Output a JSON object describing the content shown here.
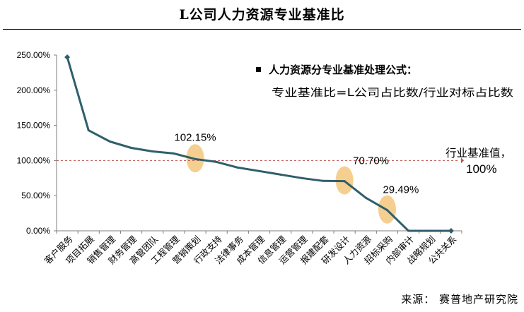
{
  "title": "L公司人力资源专业基准比",
  "source": "来源：  赛普地产研究院",
  "chart_data": {
    "type": "line",
    "title": "L公司人力资源专业基准比",
    "xlabel": "",
    "ylabel": "",
    "ylim": [
      0,
      250
    ],
    "y_ticks": [
      "0.00%",
      "50.00%",
      "100.00%",
      "150.00%",
      "200.00%",
      "250.00%"
    ],
    "categories": [
      "客户服务",
      "项目拓展",
      "销售管理",
      "财务管理",
      "高管团队",
      "工程管理",
      "营销策划",
      "行政支持",
      "法律事务",
      "成本管理",
      "信息管理",
      "运营管理",
      "报建配套",
      "研发设计",
      "人力资源",
      "招标采购",
      "内部审计",
      "战略规划",
      "公共关系"
    ],
    "series": [
      {
        "name": "专业基准比",
        "color": "#2f5f6b",
        "values": [
          247,
          143,
          127,
          118,
          113,
          110,
          102.15,
          98,
          90,
          85,
          80,
          75,
          71,
          70.7,
          47,
          29.49,
          0,
          0,
          0
        ]
      }
    ],
    "benchmark": {
      "label": "行业基准值，",
      "value_label": "100%",
      "value": 100,
      "color": "#c0504d"
    },
    "highlights": [
      {
        "category": "营销策划",
        "label": "102.15%",
        "value": 102.15
      },
      {
        "category": "研发设计",
        "label": "70.70%",
        "value": 70.7
      },
      {
        "category": "招标采购",
        "label": "29.49%",
        "value": 29.49
      }
    ],
    "highlight_color": "#f5cf8f",
    "note": {
      "title": "人力资源分专业基准处理公式：",
      "formula": "专业基准比=L公司占比数/行业对标占比数"
    }
  }
}
